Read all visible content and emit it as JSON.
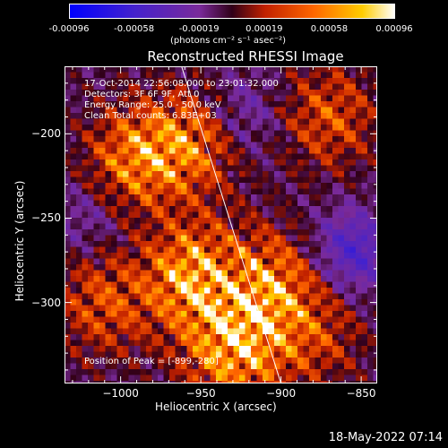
{
  "colorbar": {
    "ticks": [
      "-0.00096",
      "-0.00058",
      "-0.00019",
      "0.00019",
      "0.00058",
      "0.00096"
    ],
    "units": "(photons cm⁻² s⁻¹ asec⁻²)",
    "colors": [
      "#0000ff",
      "#4422cc",
      "#7a2a9a",
      "#300018",
      "#c02000",
      "#ff6600",
      "#ffcc00",
      "#ffffff"
    ]
  },
  "chart_data": {
    "type": "heatmap",
    "title": "Reconstructed RHESSI Image",
    "xlabel": "Heliocentric X (arcsec)",
    "ylabel": "Heliocentric Y (arcsec)",
    "xlim": [
      -1035,
      -840
    ],
    "ylim": [
      -348,
      -160
    ],
    "xticks": [
      "-1000",
      "-950",
      "-900",
      "-850"
    ],
    "xtick_values": [
      -1000,
      -950,
      -900,
      -850
    ],
    "yticks": [
      "-200",
      "-250",
      "-300"
    ],
    "ytick_values": [
      -200,
      -250,
      -300
    ],
    "limb_line": [
      [
        -962,
        -160
      ],
      [
        -900,
        -348
      ]
    ],
    "colorbar_range": [
      -0.00096,
      0.00096
    ],
    "annotations": [
      "17-Oct-2014 22:56:08.000 to 23:01:32.000",
      "Detectors: 3F 6F 9F, Att 0",
      "Energy Range: 25.0 - 50.0 keV",
      "Clean     Total counts: 6.83E+03"
    ],
    "peak_label": "Position of Peak = [-899,-280]"
  },
  "timestamp": "18-May-2022 07:14"
}
